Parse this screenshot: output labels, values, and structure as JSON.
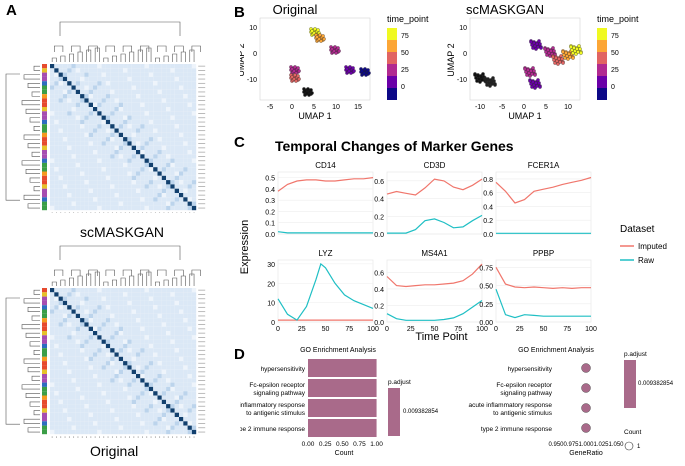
{
  "figure": {
    "panel_labels": {
      "a": "A",
      "b": "B",
      "c": "C",
      "d": "D"
    },
    "panelA": {
      "top_caption": "scMASKGAN",
      "bottom_caption": "Original",
      "heatmap_colors": {
        "diag": "#12406e",
        "light": "#dbe8f6",
        "mid": "#bcd4ec",
        "pale": "#eef4fb"
      },
      "side_colors": [
        "#e64a2e",
        "#f59a1e",
        "#3b9e47",
        "#2e6cc0",
        "#a64db0",
        "#e6c229"
      ]
    },
    "panelB": {
      "left_title": "Original",
      "right_title": "scMASKGAN",
      "xlabel": "UMAP 1",
      "ylabel": "UMAP 2",
      "left_xticks": [
        "-5",
        "0",
        "5",
        "10",
        "15"
      ],
      "left_yticks": [
        "10",
        "0",
        "-10"
      ],
      "right_xticks": [
        "-10",
        "-5",
        "0",
        "5",
        "10"
      ],
      "right_yticks": [
        "10",
        "0",
        "-10"
      ],
      "legend_title": "time_point",
      "legend_ticks": [
        "75",
        "50",
        "25",
        "0"
      ]
    },
    "panelC": {
      "title": "Temporal Changes of Marker Genes",
      "ylabel": "Expression",
      "xlabel": "Time Point",
      "legend_title": "Dataset",
      "colors": {
        "Imputed": "#f0766c",
        "Raw": "#1fbfc4"
      },
      "xticks": [
        "0",
        "25",
        "50",
        "75",
        "100"
      ]
    },
    "panelD": {
      "left": {
        "title": "GO Enrichment Analysis",
        "xlabel": "Count",
        "legend_title": "p.adjust",
        "legend_value": "0.009382854",
        "xticks": [
          "0.00",
          "0.25",
          "0.50",
          "0.75",
          "1.00"
        ]
      },
      "right": {
        "title": "GO Enrichment Analysis",
        "xlabel": "GeneRatio",
        "legend_title": "p.adjust",
        "legend_value": "0.009382854",
        "count_title": "Count",
        "count_value": "1",
        "xticks": [
          "0.950",
          "0.975",
          "1.000",
          "1.025",
          "1.050"
        ]
      },
      "terms": [
        "hypersensitivity",
        "Fc-epsilon receptor\nsignaling pathway",
        "acute inflammatory response\nto antigenic stimulus",
        "type 2 immune response"
      ],
      "bar_color": "#a96a8a"
    }
  },
  "chart_data": [
    {
      "type": "line",
      "panel": "C",
      "gene": "CD14",
      "x": [
        0,
        10,
        20,
        30,
        40,
        50,
        60,
        70,
        80,
        90,
        100
      ],
      "series": [
        {
          "name": "Imputed",
          "values": [
            0.38,
            0.44,
            0.47,
            0.48,
            0.48,
            0.47,
            0.47,
            0.48,
            0.49,
            0.49,
            0.5
          ]
        },
        {
          "name": "Raw",
          "values": [
            0.02,
            0.01,
            0.01,
            0.01,
            0.01,
            0.01,
            0.01,
            0.01,
            0.01,
            0.01,
            0.01
          ]
        }
      ],
      "ylim": [
        0,
        0.55
      ],
      "yticks": [
        "0.5",
        "0.4",
        "0.3",
        "0.2",
        "0.1",
        "0.0"
      ]
    },
    {
      "type": "line",
      "panel": "C",
      "gene": "CD3D",
      "x": [
        0,
        10,
        20,
        30,
        40,
        50,
        60,
        70,
        80,
        90,
        100
      ],
      "series": [
        {
          "name": "Imputed",
          "values": [
            0.45,
            0.48,
            0.46,
            0.44,
            0.52,
            0.62,
            0.6,
            0.53,
            0.5,
            0.55,
            0.62
          ]
        },
        {
          "name": "Raw",
          "values": [
            0.01,
            0.01,
            0.01,
            0.05,
            0.15,
            0.17,
            0.13,
            0.07,
            0.08,
            0.15,
            0.21
          ]
        }
      ],
      "ylim": [
        0,
        0.7
      ],
      "yticks": [
        "0.6",
        "0.4",
        "0.2",
        "0.0"
      ]
    },
    {
      "type": "line",
      "panel": "C",
      "gene": "FCER1A",
      "x": [
        0,
        10,
        20,
        30,
        40,
        50,
        60,
        70,
        80,
        90,
        100
      ],
      "series": [
        {
          "name": "Imputed",
          "values": [
            0.75,
            0.62,
            0.45,
            0.5,
            0.62,
            0.65,
            0.68,
            0.72,
            0.75,
            0.78,
            0.82
          ]
        },
        {
          "name": "Raw",
          "values": [
            0.01,
            0.01,
            0.01,
            0.01,
            0.01,
            0.01,
            0.01,
            0.01,
            0.01,
            0.01,
            0.01
          ]
        }
      ],
      "ylim": [
        0,
        0.9
      ],
      "yticks": [
        "0.8",
        "0.6",
        "0.4",
        "0.2",
        "0.0"
      ]
    },
    {
      "type": "line",
      "panel": "C",
      "gene": "LYZ",
      "x": [
        0,
        10,
        20,
        30,
        40,
        45,
        50,
        60,
        70,
        80,
        90,
        100
      ],
      "series": [
        {
          "name": "Imputed",
          "values": [
            1,
            1,
            1,
            1,
            1,
            1,
            1,
            1,
            1,
            1,
            1,
            1
          ]
        },
        {
          "name": "Raw",
          "values": [
            12,
            4,
            1,
            8,
            22,
            30,
            28,
            20,
            14,
            11,
            9,
            7
          ]
        }
      ],
      "ylim": [
        0,
        32
      ],
      "yticks": [
        "30",
        "20",
        "10",
        "0"
      ]
    },
    {
      "type": "line",
      "panel": "C",
      "gene": "MS4A1",
      "x": [
        0,
        10,
        20,
        30,
        40,
        50,
        60,
        70,
        80,
        90,
        100
      ],
      "series": [
        {
          "name": "Imputed",
          "values": [
            0.55,
            0.44,
            0.43,
            0.44,
            0.45,
            0.45,
            0.46,
            0.47,
            0.5,
            0.58,
            0.7
          ]
        },
        {
          "name": "Raw",
          "values": [
            0.1,
            0.04,
            0.02,
            0.02,
            0.02,
            0.02,
            0.03,
            0.05,
            0.1,
            0.18,
            0.26
          ]
        }
      ],
      "ylim": [
        0,
        0.75
      ],
      "yticks": [
        "0.6",
        "0.4",
        "0.2",
        "0.0"
      ]
    },
    {
      "type": "line",
      "panel": "C",
      "gene": "PPBP",
      "x": [
        0,
        10,
        20,
        30,
        40,
        50,
        60,
        70,
        80,
        90,
        100
      ],
      "series": [
        {
          "name": "Imputed",
          "values": [
            0.75,
            0.52,
            0.48,
            0.47,
            0.48,
            0.47,
            0.46,
            0.47,
            0.46,
            0.47,
            0.47
          ]
        },
        {
          "name": "Raw",
          "values": [
            0.45,
            0.1,
            0.06,
            0.1,
            0.09,
            0.08,
            0.08,
            0.08,
            0.08,
            0.08,
            0.08
          ]
        }
      ],
      "ylim": [
        0,
        0.85
      ],
      "yticks": [
        "0.75",
        "0.50",
        "0.25",
        "0.00"
      ]
    },
    {
      "type": "bar",
      "panel": "D-left",
      "title": "GO Enrichment Analysis",
      "categories": [
        "hypersensitivity",
        "Fc-epsilon receptor signaling pathway",
        "acute inflammatory response to antigenic stimulus",
        "type 2 immune response"
      ],
      "values": [
        1,
        1,
        1,
        1
      ],
      "xlabel": "Count",
      "xlim": [
        0,
        1.05
      ]
    },
    {
      "type": "scatter",
      "panel": "D-right",
      "title": "GO Enrichment Analysis",
      "categories": [
        "hypersensitivity",
        "Fc-epsilon receptor signaling pathway",
        "acute inflammatory response to antigenic stimulus",
        "type 2 immune response"
      ],
      "values": [
        1.0,
        1.0,
        1.0,
        1.0
      ],
      "xlabel": "GeneRatio",
      "xlim": [
        0.95,
        1.05
      ]
    }
  ]
}
